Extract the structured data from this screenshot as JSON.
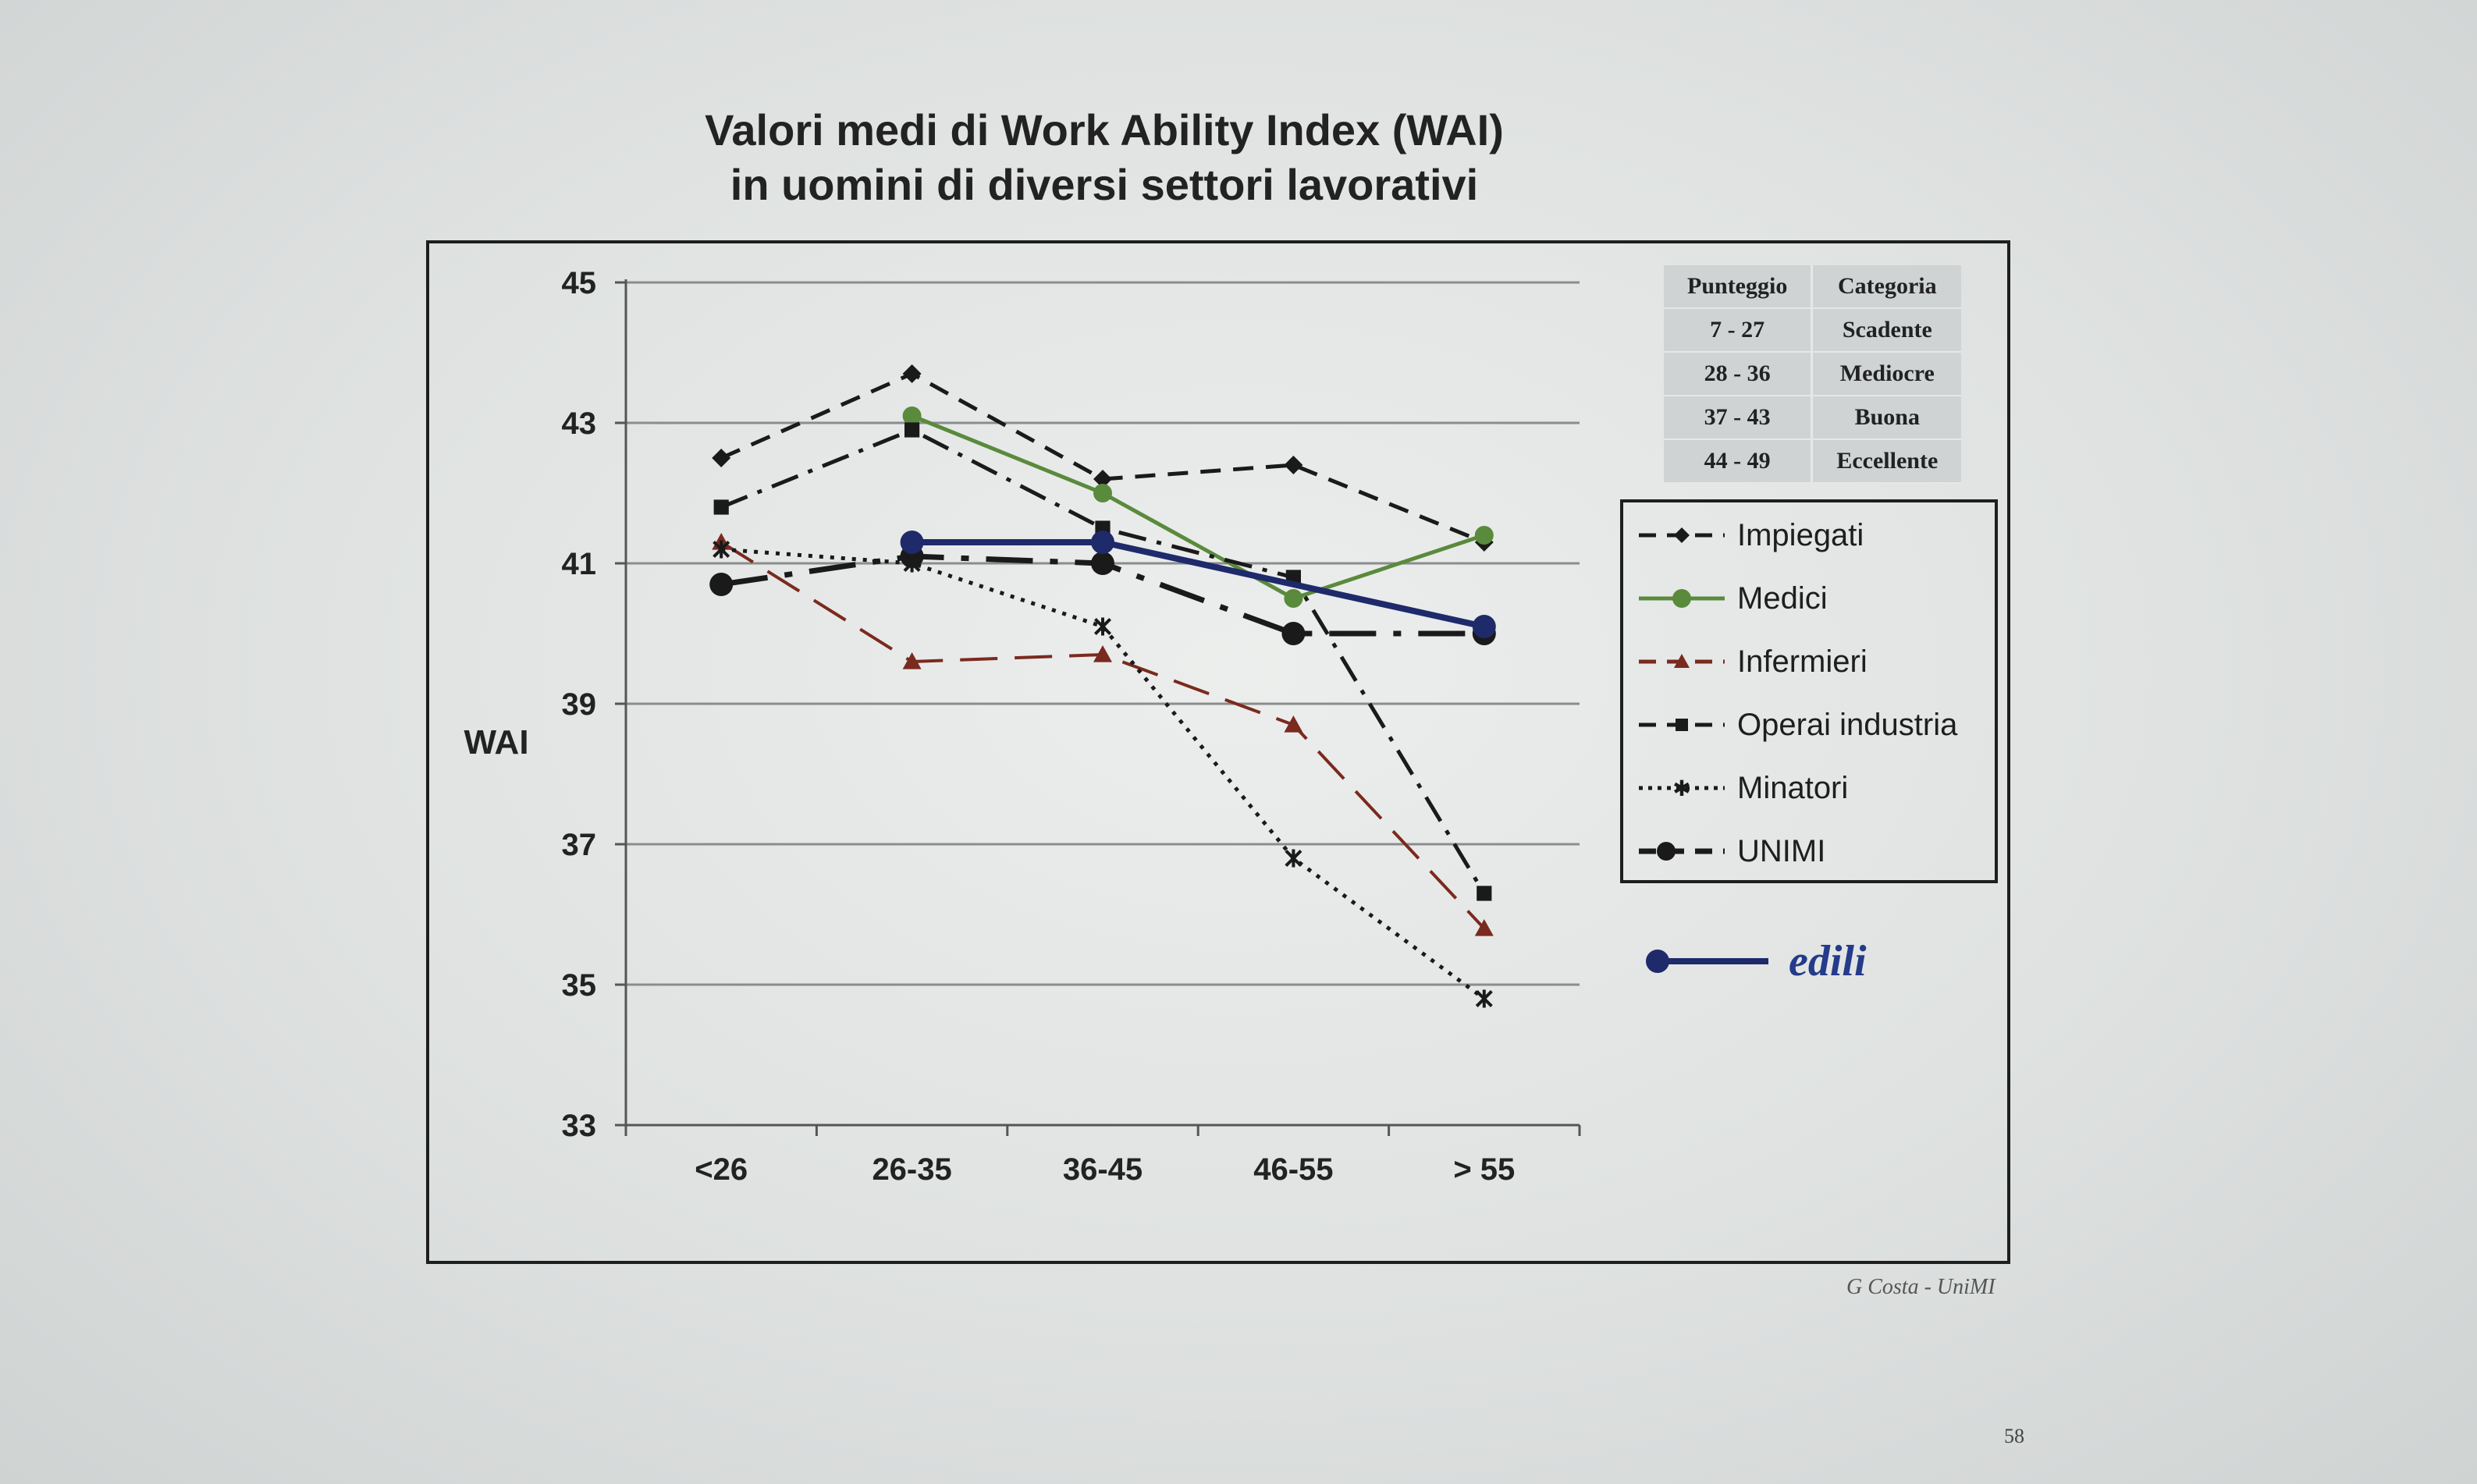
{
  "slide": {
    "title_line1": "Valori medi di Work Ability Index (WAI)",
    "title_line2": "in uomini di diversi settori lavorativi",
    "source": "G Costa - UniMI",
    "page_number": "58"
  },
  "score_table": {
    "headers": [
      "Punteggio",
      "Categoria"
    ],
    "rows": [
      [
        "7 - 27",
        "Scadente"
      ],
      [
        "28 - 36",
        "Mediocre"
      ],
      [
        "37 - 43",
        "Buona"
      ],
      [
        "44 - 49",
        "Eccellente"
      ]
    ]
  },
  "chart_data": {
    "type": "line",
    "title": "",
    "xlabel": "",
    "ylabel": "WAI",
    "ylim": [
      33,
      45
    ],
    "yticks": [
      "33",
      "35",
      "37",
      "39",
      "41",
      "43",
      "45"
    ],
    "categories": [
      "<26",
      "26-35",
      "36-45",
      "46-55",
      "> 55"
    ],
    "grid": true,
    "legend_position": "right",
    "series": [
      {
        "name": "Impiegati",
        "values": [
          42.5,
          43.7,
          42.2,
          42.4,
          41.3
        ],
        "color": "#1a1a1a",
        "dash": "dashed",
        "marker": "diamond"
      },
      {
        "name": "Medici",
        "values": [
          null,
          43.1,
          42.0,
          40.5,
          41.4
        ],
        "color": "#5a8a3c",
        "dash": "solid",
        "marker": "circle"
      },
      {
        "name": "Infermieri",
        "values": [
          41.3,
          39.6,
          39.7,
          38.7,
          35.8
        ],
        "color": "#7a2a1e",
        "dash": "longdash",
        "marker": "triangle"
      },
      {
        "name": "Operai industria",
        "values": [
          41.8,
          42.9,
          41.5,
          40.8,
          36.3
        ],
        "color": "#1a1a1a",
        "dash": "dashdot",
        "marker": "square"
      },
      {
        "name": "Minatori",
        "values": [
          41.2,
          41.0,
          40.1,
          36.8,
          34.8
        ],
        "color": "#1a1a1a",
        "dash": "dotted",
        "marker": "star"
      },
      {
        "name": "UNIMI",
        "values": [
          40.7,
          41.1,
          41.0,
          40.0,
          40.0
        ],
        "color": "#1a1a1a",
        "dash": "longdashdot",
        "marker": "circle"
      },
      {
        "name": "edili",
        "values": [
          null,
          41.3,
          41.3,
          null,
          40.1
        ],
        "color": "#1f2a6b",
        "dash": "solid",
        "marker": "circle"
      }
    ]
  }
}
